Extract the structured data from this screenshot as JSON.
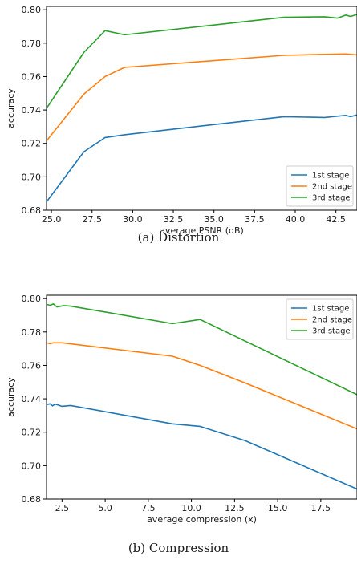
{
  "colors": {
    "series1": "#1f77b4",
    "series2": "#ff7f0e",
    "series3": "#2ca02c",
    "axis": "#000000"
  },
  "chart_data": [
    {
      "type": "line",
      "caption": "(a)  Distortion",
      "xlabel": "average PSNR (dB)",
      "ylabel": "accuracy",
      "xlim": [
        24.7,
        43.8
      ],
      "ylim": [
        0.68,
        0.802
      ],
      "xticks": [
        "25.0",
        "27.5",
        "30.0",
        "32.5",
        "35.0",
        "37.5",
        "40.0",
        "42.5"
      ],
      "xtick_values": [
        25.0,
        27.5,
        30.0,
        32.5,
        35.0,
        37.5,
        40.0,
        42.5
      ],
      "yticks": [
        "0.68",
        "0.70",
        "0.72",
        "0.74",
        "0.76",
        "0.78",
        "0.80"
      ],
      "ytick_values": [
        0.68,
        0.7,
        0.72,
        0.74,
        0.76,
        0.78,
        0.8
      ],
      "legend_position": "lower-right",
      "series": [
        {
          "name": "1st stage",
          "color": "#1f77b4",
          "points": [
            [
              24.7,
              0.685
            ],
            [
              27.0,
              0.715
            ],
            [
              28.3,
              0.7235
            ],
            [
              29.5,
              0.7252
            ],
            [
              39.3,
              0.736
            ],
            [
              41.8,
              0.7355
            ],
            [
              43.1,
              0.7368
            ],
            [
              43.4,
              0.736
            ],
            [
              43.8,
              0.737
            ]
          ]
        },
        {
          "name": "2nd stage",
          "color": "#ff7f0e",
          "points": [
            [
              24.7,
              0.7215
            ],
            [
              27.0,
              0.7495
            ],
            [
              28.3,
              0.76
            ],
            [
              29.5,
              0.7655
            ],
            [
              39.3,
              0.7727
            ],
            [
              41.8,
              0.7733
            ],
            [
              43.1,
              0.7735
            ],
            [
              43.8,
              0.773
            ]
          ]
        },
        {
          "name": "3rd stage",
          "color": "#2ca02c",
          "points": [
            [
              24.7,
              0.741
            ],
            [
              27.0,
              0.7745
            ],
            [
              28.3,
              0.7875
            ],
            [
              29.5,
              0.785
            ],
            [
              39.3,
              0.7955
            ],
            [
              41.8,
              0.7958
            ],
            [
              42.6,
              0.795
            ],
            [
              43.1,
              0.7968
            ],
            [
              43.4,
              0.796
            ],
            [
              43.8,
              0.7972
            ]
          ]
        }
      ]
    },
    {
      "type": "line",
      "caption": "(b)  Compression",
      "xlabel": "average compression (x)",
      "ylabel": "accuracy",
      "xlim": [
        1.6,
        19.6
      ],
      "ylim": [
        0.68,
        0.802
      ],
      "xticks": [
        "2.5",
        "5.0",
        "7.5",
        "10.0",
        "12.5",
        "15.0",
        "17.5"
      ],
      "xtick_values": [
        2.5,
        5.0,
        7.5,
        10.0,
        12.5,
        15.0,
        17.5
      ],
      "yticks": [
        "0.68",
        "0.70",
        "0.72",
        "0.74",
        "0.76",
        "0.78",
        "0.80"
      ],
      "ytick_values": [
        0.68,
        0.7,
        0.72,
        0.74,
        0.76,
        0.78,
        0.8
      ],
      "legend_position": "upper-right",
      "series": [
        {
          "name": "1st stage",
          "color": "#1f77b4",
          "points": [
            [
              1.6,
              0.7365
            ],
            [
              1.8,
              0.737
            ],
            [
              1.95,
              0.7358
            ],
            [
              2.1,
              0.7368
            ],
            [
              2.3,
              0.7362
            ],
            [
              2.5,
              0.7355
            ],
            [
              3.0,
              0.736
            ],
            [
              8.9,
              0.725
            ],
            [
              10.5,
              0.7235
            ],
            [
              13.1,
              0.715
            ],
            [
              19.6,
              0.686
            ]
          ]
        },
        {
          "name": "2nd stage",
          "color": "#ff7f0e",
          "points": [
            [
              1.6,
              0.7735
            ],
            [
              1.8,
              0.773
            ],
            [
              2.0,
              0.7735
            ],
            [
              2.5,
              0.7735
            ],
            [
              8.9,
              0.7655
            ],
            [
              10.5,
              0.76
            ],
            [
              13.1,
              0.7495
            ],
            [
              19.6,
              0.722
            ]
          ]
        },
        {
          "name": "3rd stage",
          "color": "#2ca02c",
          "points": [
            [
              1.6,
              0.7965
            ],
            [
              1.8,
              0.796
            ],
            [
              2.0,
              0.7968
            ],
            [
              2.2,
              0.795
            ],
            [
              2.6,
              0.7958
            ],
            [
              3.0,
              0.7955
            ],
            [
              8.9,
              0.785
            ],
            [
              10.5,
              0.7875
            ],
            [
              19.6,
              0.7425
            ]
          ]
        }
      ]
    }
  ]
}
